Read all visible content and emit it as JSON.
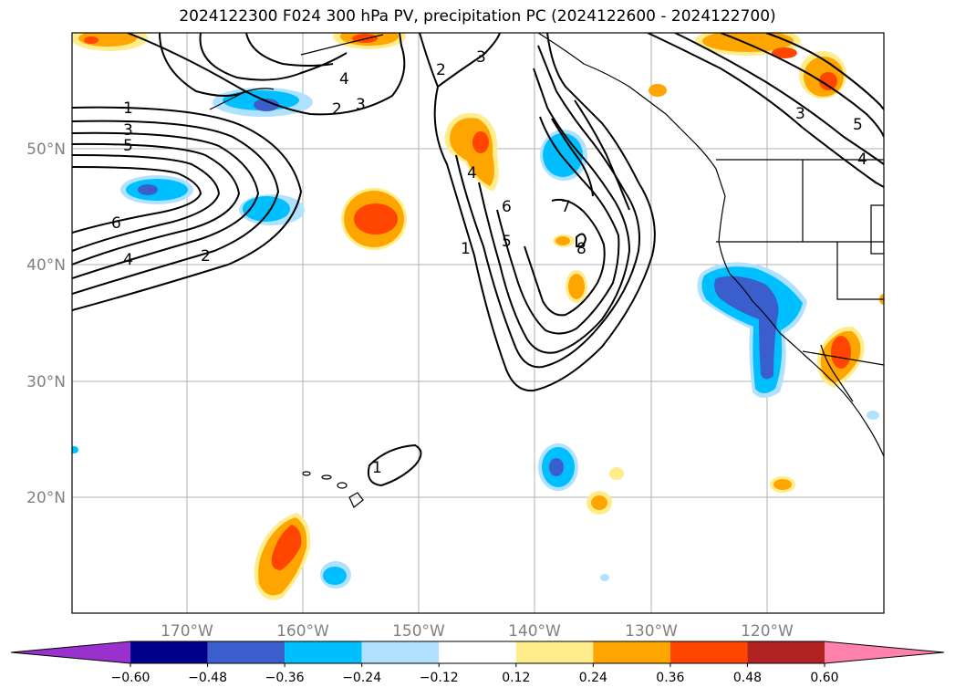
{
  "title": "2024122300 F024 300 hPa PV, precipitation PC (2024122600 - 2024122700)",
  "lat_labels": [
    "50°N",
    "40°N",
    "30°N",
    "20°N"
  ],
  "lon_labels": [
    "170°W",
    "160°W",
    "150°W",
    "140°W",
    "130°W",
    "120°W"
  ],
  "colorbar": {
    "ticks": [
      "−0.60",
      "−0.48",
      "−0.36",
      "−0.24",
      "−0.12",
      "0.12",
      "0.24",
      "0.36",
      "0.48",
      "0.60"
    ],
    "colors": [
      "#9932cc",
      "#00008b",
      "#3a5fcd",
      "#00bfff",
      "#b0e2ff",
      "#ffffff",
      "#ffec8b",
      "#ffa500",
      "#ff4500",
      "#b22222",
      "#ff82ab"
    ]
  },
  "contour_labels": [
    "1",
    "3",
    "5",
    "6",
    "4",
    "2",
    "4",
    "3",
    "2",
    "2",
    "3",
    "4",
    "6",
    "5",
    "7",
    "8",
    "1",
    "3",
    "5",
    "4",
    "1"
  ]
}
